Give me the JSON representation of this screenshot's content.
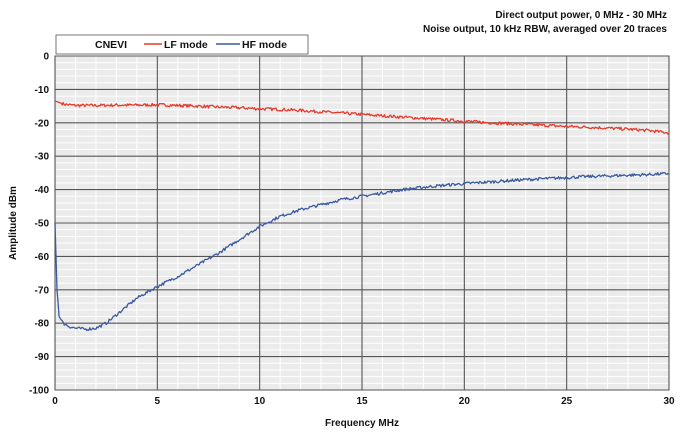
{
  "chart_data": {
    "type": "line",
    "subtitle_lines": [
      "Direct output power, 0 MHz - 30 MHz",
      "Noise output, 10 kHz RBW, averaged over 20 traces"
    ],
    "xlabel": "Frequency MHz",
    "ylabel": "Amplitude dBm",
    "xlim": [
      0,
      30
    ],
    "ylim": [
      -100,
      0
    ],
    "x_ticks": [
      0,
      5,
      10,
      15,
      20,
      25,
      30
    ],
    "y_ticks": [
      0,
      -10,
      -20,
      -30,
      -40,
      -50,
      -60,
      -70,
      -80,
      -90,
      -100
    ],
    "grid": true,
    "legend_placement": "top-left",
    "legend_title": "CNEVI",
    "series": [
      {
        "name": "LF mode",
        "color": "#e8392a",
        "x": [
          0,
          0.5,
          1,
          2,
          3,
          4,
          5,
          6,
          7,
          8,
          9,
          10,
          11,
          12,
          13,
          14,
          15,
          16,
          17,
          18,
          19,
          20,
          21,
          22,
          23,
          24,
          25,
          26,
          27,
          28,
          29,
          30
        ],
        "y": [
          -13.5,
          -14.5,
          -14.8,
          -14.8,
          -14.7,
          -14.7,
          -14.6,
          -14.8,
          -15.0,
          -15.3,
          -15.5,
          -15.8,
          -16.0,
          -16.3,
          -16.7,
          -17.1,
          -17.5,
          -17.9,
          -18.3,
          -18.7,
          -19.1,
          -19.5,
          -19.9,
          -20.2,
          -20.5,
          -20.8,
          -21.1,
          -21.3,
          -21.6,
          -21.9,
          -22.3,
          -23.0
        ]
      },
      {
        "name": "HF mode",
        "color": "#3b5aa0",
        "x": [
          0,
          0.1,
          0.2,
          0.4,
          0.7,
          1,
          1.5,
          2,
          2.5,
          3,
          4,
          5,
          6,
          7,
          8,
          9,
          10,
          11,
          12,
          13,
          14,
          15,
          16,
          17,
          18,
          19,
          20,
          21,
          22,
          23,
          24,
          25,
          26,
          27,
          28,
          29,
          30
        ],
        "y": [
          -50,
          -70,
          -78,
          -80,
          -81,
          -81.5,
          -81.8,
          -81.5,
          -80,
          -77.5,
          -72.5,
          -69,
          -66,
          -62.5,
          -59,
          -55,
          -51,
          -48,
          -46,
          -44.5,
          -43,
          -42,
          -41,
          -40,
          -39.3,
          -38.7,
          -38.2,
          -37.8,
          -37.4,
          -37.0,
          -36.7,
          -36.4,
          -36.1,
          -35.9,
          -35.7,
          -35.5,
          -35.2
        ]
      }
    ]
  }
}
